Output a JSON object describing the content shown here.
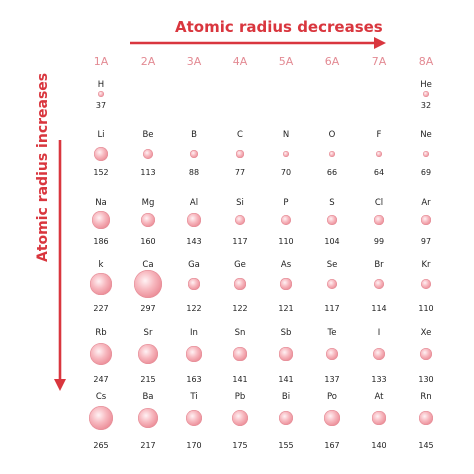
{
  "titles": {
    "top": "Atomic radius decreases",
    "side": "Atomic radius increases"
  },
  "colors": {
    "arrow": "#d9363e",
    "group_label": "#e38a93",
    "atom_light": "#fff2f4",
    "atom_dark": "#e07d88"
  },
  "groups": [
    "1A",
    "2A",
    "3A",
    "4A",
    "5A",
    "6A",
    "7A",
    "8A"
  ],
  "rows": [
    [
      {
        "group": 0,
        "symbol": "H",
        "radius": "37"
      },
      {
        "group": 7,
        "symbol": "He",
        "radius": "32"
      }
    ],
    [
      {
        "group": 0,
        "symbol": "Li",
        "radius": "152"
      },
      {
        "group": 1,
        "symbol": "Be",
        "radius": "113"
      },
      {
        "group": 2,
        "symbol": "B",
        "radius": "88"
      },
      {
        "group": 3,
        "symbol": "C",
        "radius": "77"
      },
      {
        "group": 4,
        "symbol": "N",
        "radius": "70"
      },
      {
        "group": 5,
        "symbol": "O",
        "radius": "66"
      },
      {
        "group": 6,
        "symbol": "F",
        "radius": "64"
      },
      {
        "group": 7,
        "symbol": "Ne",
        "radius": "69"
      }
    ],
    [
      {
        "group": 0,
        "symbol": "Na",
        "radius": "186"
      },
      {
        "group": 1,
        "symbol": "Mg",
        "radius": "160"
      },
      {
        "group": 2,
        "symbol": "Al",
        "radius": "143"
      },
      {
        "group": 3,
        "symbol": "Si",
        "radius": "117"
      },
      {
        "group": 4,
        "symbol": "P",
        "radius": "110"
      },
      {
        "group": 5,
        "symbol": "S",
        "radius": "104"
      },
      {
        "group": 6,
        "symbol": "Cl",
        "radius": "99"
      },
      {
        "group": 7,
        "symbol": "Ar",
        "radius": "97"
      }
    ],
    [
      {
        "group": 0,
        "symbol": "k",
        "radius": "227"
      },
      {
        "group": 1,
        "symbol": "Ca",
        "radius": "297"
      },
      {
        "group": 2,
        "symbol": "Ga",
        "radius": "122"
      },
      {
        "group": 3,
        "symbol": "Ge",
        "radius": "122"
      },
      {
        "group": 4,
        "symbol": "As",
        "radius": "121"
      },
      {
        "group": 5,
        "symbol": "Se",
        "radius": "117"
      },
      {
        "group": 6,
        "symbol": "Br",
        "radius": "114"
      },
      {
        "group": 7,
        "symbol": "Kr",
        "radius": "110"
      }
    ],
    [
      {
        "group": 0,
        "symbol": "Rb",
        "radius": "247"
      },
      {
        "group": 1,
        "symbol": "Sr",
        "radius": "215"
      },
      {
        "group": 2,
        "symbol": "In",
        "radius": "163"
      },
      {
        "group": 3,
        "symbol": "Sn",
        "radius": "141"
      },
      {
        "group": 4,
        "symbol": "Sb",
        "radius": "141"
      },
      {
        "group": 5,
        "symbol": "Te",
        "radius": "137"
      },
      {
        "group": 6,
        "symbol": "I",
        "radius": "133"
      },
      {
        "group": 7,
        "symbol": "Xe",
        "radius": "130"
      }
    ],
    [
      {
        "group": 0,
        "symbol": "Cs",
        "radius": "265"
      },
      {
        "group": 1,
        "symbol": "Ba",
        "radius": "217"
      },
      {
        "group": 2,
        "symbol": "Ti",
        "radius": "170"
      },
      {
        "group": 3,
        "symbol": "Pb",
        "radius": "175"
      },
      {
        "group": 4,
        "symbol": "Bi",
        "radius": "155"
      },
      {
        "group": 5,
        "symbol": "Po",
        "radius": "167"
      },
      {
        "group": 6,
        "symbol": "At",
        "radius": "140"
      },
      {
        "group": 7,
        "symbol": "Rn",
        "radius": "145"
      }
    ]
  ]
}
